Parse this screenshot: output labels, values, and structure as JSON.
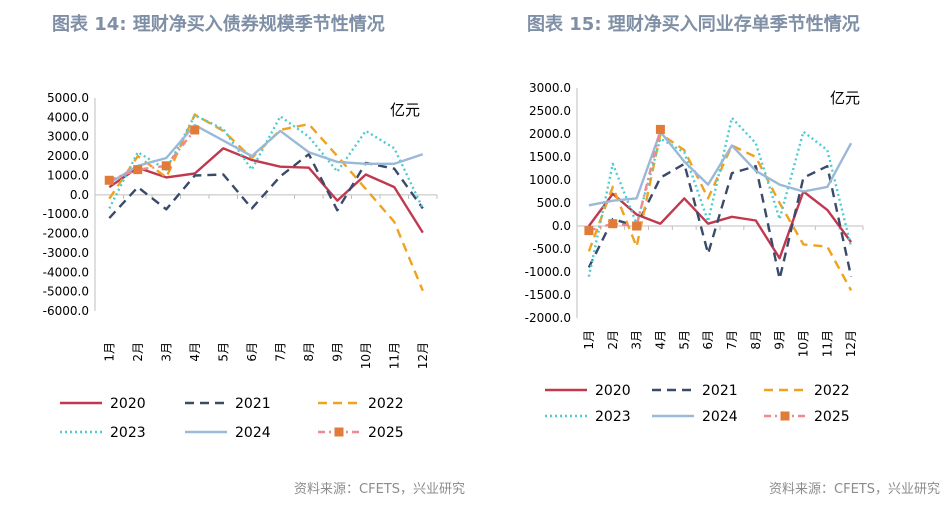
{
  "charts": [
    {
      "title": "图表 14: 理财净买入债券规模季节性情况",
      "unit": "亿元",
      "source": "资料来源：CFETS，兴业研究"
    },
    {
      "title": "图表 15: 理财净买入同业存单季节性情况",
      "unit": "亿元",
      "source": "资料来源：CFETS，兴业研究"
    }
  ],
  "chart_data": [
    {
      "type": "line",
      "title": "图表 14: 理财净买入债券规模季节性情况",
      "ylabel": "亿元",
      "ylim": [
        -6000,
        5000
      ],
      "yticks": [
        "5000.0",
        "4000.0",
        "3000.0",
        "2000.0",
        "1000.0",
        "0.0",
        "-1000.0",
        "-2000.0",
        "-3000.0",
        "-4000.0",
        "-5000.0",
        "-6000.0"
      ],
      "categories": [
        "1月",
        "2月",
        "3月",
        "4月",
        "5月",
        "6月",
        "7月",
        "8月",
        "9月",
        "10月",
        "11月",
        "12月"
      ],
      "legend_position": "bottom",
      "series": [
        {
          "name": "2020",
          "color": "#c0394f",
          "dash": "solid",
          "values": [
            400,
            1400,
            900,
            1100,
            2400,
            1800,
            1450,
            1400,
            -300,
            1050,
            400,
            -1950
          ]
        },
        {
          "name": "2021",
          "color": "#3a4a6b",
          "dash": "dashed",
          "values": [
            -1200,
            400,
            -750,
            1000,
            1050,
            -700,
            950,
            2100,
            -800,
            1650,
            1350,
            -700
          ]
        },
        {
          "name": "2022",
          "color": "#f0a11f",
          "dash": "dashed",
          "values": [
            -200,
            2000,
            900,
            4150,
            3300,
            1900,
            3350,
            3650,
            2000,
            300,
            -1400,
            -4950
          ]
        },
        {
          "name": "2023",
          "color": "#4ecbd1",
          "dash": "dotted",
          "values": [
            -700,
            2200,
            1300,
            4100,
            3400,
            1300,
            4050,
            3000,
            1200,
            3300,
            2400,
            -700
          ]
        },
        {
          "name": "2024",
          "color": "#9ab9d9",
          "dash": "solid",
          "values": [
            600,
            1500,
            1900,
            3600,
            2800,
            2000,
            3300,
            2200,
            1700,
            1600,
            1600,
            2100
          ]
        },
        {
          "name": "2025",
          "color": "#ee8a8f",
          "dash": "dashdot",
          "marker": "square",
          "values": [
            750,
            1300,
            1500,
            3350,
            null,
            null,
            null,
            null,
            null,
            null,
            null,
            null
          ]
        }
      ]
    },
    {
      "type": "line",
      "title": "图表 15: 理财净买入同业存单季节性情况",
      "ylabel": "亿元",
      "ylim": [
        -2000,
        3000
      ],
      "yticks": [
        "3000.0",
        "2500.0",
        "2000.0",
        "1500.0",
        "1000.0",
        "500.0",
        "0.0",
        "-500.0",
        "-1000.0",
        "-1500.0",
        "-2000.0"
      ],
      "categories": [
        "1月",
        "2月",
        "3月",
        "4月",
        "5月",
        "6月",
        "7月",
        "8月",
        "9月",
        "10月",
        "11月",
        "12月"
      ],
      "legend_position": "bottom",
      "series": [
        {
          "name": "2020",
          "color": "#c0394f",
          "dash": "solid",
          "values": [
            0,
            700,
            250,
            50,
            600,
            50,
            200,
            120,
            -700,
            750,
            350,
            -350
          ]
        },
        {
          "name": "2021",
          "color": "#3a4a6b",
          "dash": "dashed",
          "values": [
            -900,
            150,
            0,
            1050,
            1350,
            -600,
            1150,
            1300,
            -1150,
            1050,
            1300,
            -1100
          ]
        },
        {
          "name": "2022",
          "color": "#f0a11f",
          "dash": "dashed",
          "values": [
            -550,
            850,
            -450,
            2000,
            1650,
            600,
            1750,
            1500,
            500,
            -400,
            -450,
            -1400
          ]
        },
        {
          "name": "2023",
          "color": "#4ecbd1",
          "dash": "dotted",
          "values": [
            -1100,
            1350,
            50,
            1900,
            1600,
            100,
            2350,
            1800,
            150,
            2050,
            1650,
            -450
          ]
        },
        {
          "name": "2024",
          "color": "#9ab9d9",
          "dash": "solid",
          "values": [
            450,
            550,
            600,
            2050,
            1400,
            900,
            1750,
            1200,
            900,
            750,
            850,
            1800
          ]
        },
        {
          "name": "2025",
          "color": "#ee8a8f",
          "dash": "dashdot",
          "marker": "square",
          "values": [
            -100,
            50,
            0,
            2100,
            null,
            null,
            null,
            null,
            null,
            null,
            null,
            null
          ]
        }
      ]
    }
  ]
}
